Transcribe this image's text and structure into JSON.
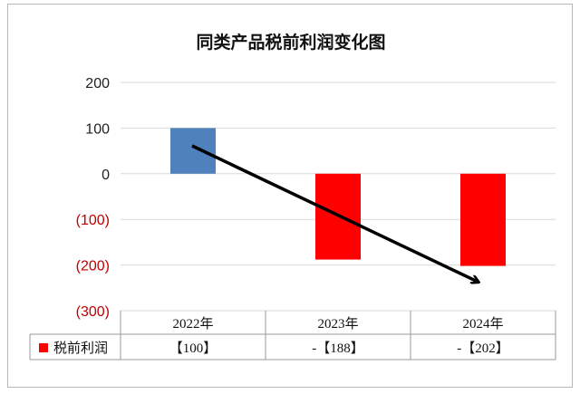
{
  "chart_data": {
    "type": "bar",
    "title": "同类产品税前利润变化图",
    "xlabel": "",
    "ylabel": "",
    "categories": [
      "2022年",
      "2023年",
      "2024年"
    ],
    "series": [
      {
        "name": "税前利润",
        "values": [
          100,
          -188,
          -202
        ],
        "table_labels": [
          "【100】",
          "-【188】",
          "-【202】"
        ]
      }
    ],
    "ylim": [
      -300,
      200
    ],
    "yticks": [
      200,
      100,
      0,
      -100,
      -200,
      -300
    ],
    "ytick_labels": [
      "200",
      "100",
      "0",
      "(100)",
      "(200)",
      "(300)"
    ],
    "grid": true,
    "legend": "data-table",
    "annotation": "trend-arrow",
    "colors": {
      "positive": "#4f81bd",
      "negative": "#ff0000",
      "negative_tick": "#c00000",
      "grid": "#d9d9d9",
      "arrow": "#000000"
    }
  }
}
